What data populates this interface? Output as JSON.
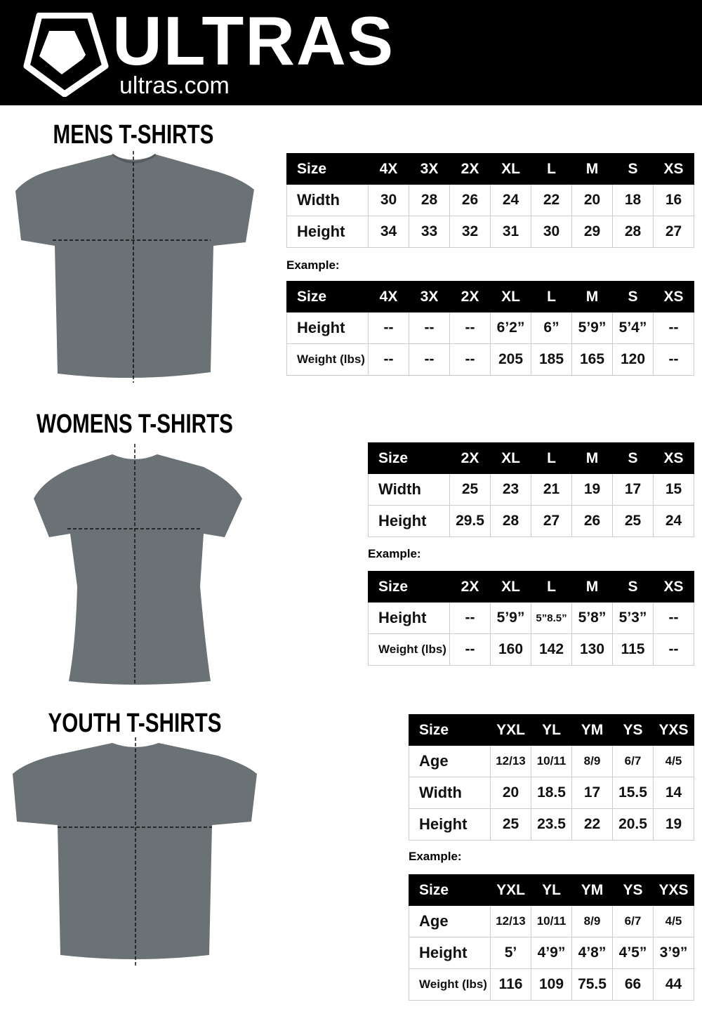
{
  "brand": {
    "name": "ULTRAS",
    "url": "ultras.com"
  },
  "example_label": "Example:",
  "sections": [
    {
      "title": "MENS T-SHIRTS",
      "measure": {
        "header": [
          "Size",
          "4X",
          "3X",
          "2X",
          "XL",
          "L",
          "M",
          "S",
          "XS"
        ],
        "rows": [
          [
            "Width",
            "30",
            "28",
            "26",
            "24",
            "22",
            "20",
            "18",
            "16"
          ],
          [
            "Height",
            "34",
            "33",
            "32",
            "31",
            "30",
            "29",
            "28",
            "27"
          ]
        ]
      },
      "example": {
        "header": [
          "Size",
          "4X",
          "3X",
          "2X",
          "XL",
          "L",
          "M",
          "S",
          "XS"
        ],
        "rows": [
          [
            "Height",
            "--",
            "--",
            "--",
            "6’2”",
            "6”",
            "5’9”",
            "5’4”",
            "--"
          ],
          [
            "Weight (lbs)",
            "--",
            "--",
            "--",
            "205",
            "185",
            "165",
            "120",
            "--"
          ]
        ]
      }
    },
    {
      "title": "WOMENS T-SHIRTS",
      "measure": {
        "header": [
          "Size",
          "2X",
          "XL",
          "L",
          "M",
          "S",
          "XS"
        ],
        "rows": [
          [
            "Width",
            "25",
            "23",
            "21",
            "19",
            "17",
            "15"
          ],
          [
            "Height",
            "29.5",
            "28",
            "27",
            "26",
            "25",
            "24"
          ]
        ]
      },
      "example": {
        "header": [
          "Size",
          "2X",
          "XL",
          "L",
          "M",
          "S",
          "XS"
        ],
        "rows": [
          [
            "Height",
            "--",
            "5’9”",
            "5”8.5”",
            "5’8”",
            "5’3”",
            "--"
          ],
          [
            "Weight (lbs)",
            "--",
            "160",
            "142",
            "130",
            "115",
            "--"
          ]
        ]
      }
    },
    {
      "title": "YOUTH T-SHIRTS",
      "measure": {
        "header": [
          "Size",
          "YXL",
          "YL",
          "YM",
          "YS",
          "YXS"
        ],
        "rows": [
          [
            "Age",
            "12/13",
            "10/11",
            "8/9",
            "6/7",
            "4/5"
          ],
          [
            "Width",
            "20",
            "18.5",
            "17",
            "15.5",
            "14"
          ],
          [
            "Height",
            "25",
            "23.5",
            "22",
            "20.5",
            "19"
          ]
        ]
      },
      "example": {
        "header": [
          "Size",
          "YXL",
          "YL",
          "YM",
          "YS",
          "YXS"
        ],
        "rows": [
          [
            "Age",
            "12/13",
            "10/11",
            "8/9",
            "6/7",
            "4/5"
          ],
          [
            "Height",
            "5’",
            "4’9”",
            "4’8”",
            "4’5”",
            "3’9”"
          ],
          [
            "Weight (lbs)",
            "116",
            "109",
            "75.5",
            "66",
            "44"
          ]
        ]
      }
    }
  ],
  "colors": {
    "header_bg": "#000000",
    "shirt": "#6b7276",
    "table_border": "#cccccc"
  }
}
